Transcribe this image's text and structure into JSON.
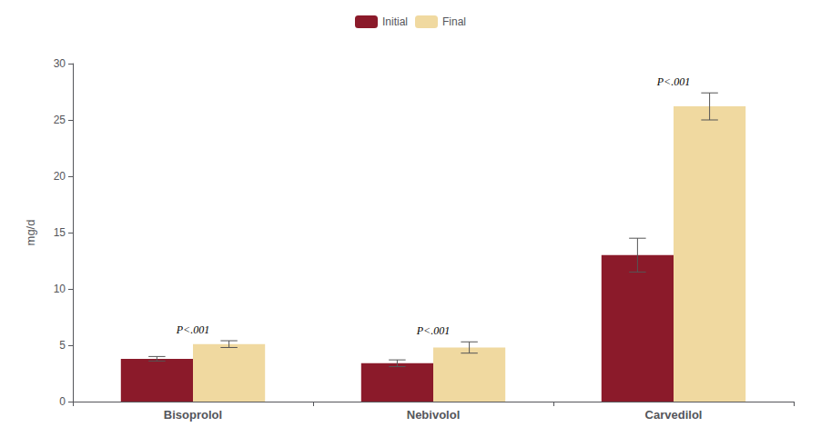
{
  "chart_data": {
    "type": "bar",
    "categories": [
      "Bisoprolol",
      "Nebivolol",
      "Carvedilol"
    ],
    "series": [
      {
        "name": "Initial",
        "color": "#8B1A2A",
        "values": [
          3.8,
          3.4,
          13.0
        ],
        "errors": [
          0.2,
          0.3,
          1.5
        ]
      },
      {
        "name": "Final",
        "color": "#F0D9A0",
        "values": [
          5.1,
          4.8,
          26.2
        ],
        "errors": [
          0.3,
          0.5,
          1.2
        ]
      }
    ],
    "ylabel": "mg/d",
    "ylim": [
      0,
      30
    ],
    "yticks": [
      0,
      5,
      10,
      15,
      20,
      25,
      30
    ],
    "annotations": [
      "P<.001",
      "P<.001",
      "P<.001"
    ],
    "grid": false,
    "legend": "top"
  }
}
